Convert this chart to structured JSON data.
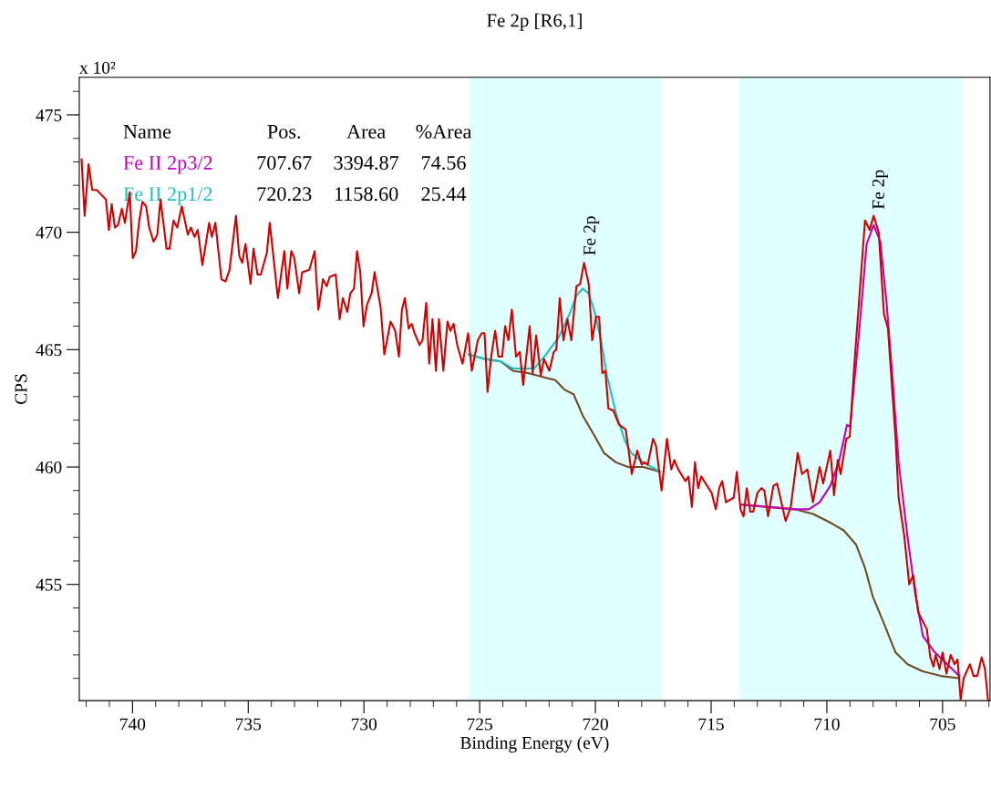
{
  "chart_data": {
    "type": "line",
    "title": "Fe 2p [R6,1]",
    "xlabel": "Binding Energy (eV)",
    "ylabel": "CPS",
    "xlim": [
      742.3,
      702.95
    ],
    "ylim": [
      450.05,
      476.6
    ],
    "xticks": [
      {
        "value": 742,
        "label": null
      },
      {
        "value": 741,
        "label": null
      },
      740,
      {
        "value": 739,
        "label": null
      },
      {
        "value": 738,
        "label": null
      },
      {
        "value": 737,
        "label": null
      },
      {
        "value": 736,
        "label": null
      },
      735,
      {
        "value": 734,
        "label": null
      },
      {
        "value": 733,
        "label": null
      },
      {
        "value": 732,
        "label": null
      },
      {
        "value": 731,
        "label": null
      },
      730,
      {
        "value": 729,
        "label": null
      },
      {
        "value": 728,
        "label": null
      },
      {
        "value": 727,
        "label": null
      },
      {
        "value": 726,
        "label": null
      },
      725,
      {
        "value": 724,
        "label": null
      },
      {
        "value": 723,
        "label": null
      },
      {
        "value": 722,
        "label": null
      },
      {
        "value": 721,
        "label": null
      },
      720,
      {
        "value": 719,
        "label": null
      },
      {
        "value": 718,
        "label": null
      },
      {
        "value": 717,
        "label": null
      },
      {
        "value": 716,
        "label": null
      },
      715,
      {
        "value": 714,
        "label": null
      },
      {
        "value": 713,
        "label": null
      },
      {
        "value": 712,
        "label": null
      },
      {
        "value": 711,
        "label": null
      },
      710,
      {
        "value": 709,
        "label": null
      },
      {
        "value": 708,
        "label": null
      },
      {
        "value": 707,
        "label": null
      },
      {
        "value": 706,
        "label": null
      },
      705,
      {
        "value": 704,
        "label": null
      },
      {
        "value": 703,
        "label": null
      }
    ],
    "yticks": [
      {
        "value": 451,
        "label": null
      },
      {
        "value": 452,
        "label": null
      },
      {
        "value": 453,
        "label": null
      },
      {
        "value": 454,
        "label": null
      },
      455,
      {
        "value": 456,
        "label": null
      },
      {
        "value": 457,
        "label": null
      },
      {
        "value": 458,
        "label": null
      },
      {
        "value": 459,
        "label": null
      },
      460,
      {
        "value": 461,
        "label": null
      },
      {
        "value": 462,
        "label": null
      },
      {
        "value": 463,
        "label": null
      },
      {
        "value": 464,
        "label": null
      },
      465,
      {
        "value": 466,
        "label": null
      },
      {
        "value": 467,
        "label": null
      },
      {
        "value": 468,
        "label": null
      },
      {
        "value": 469,
        "label": null
      },
      470,
      {
        "value": 471,
        "label": null
      },
      {
        "value": 472,
        "label": null
      },
      {
        "value": 473,
        "label": null
      },
      {
        "value": 474,
        "label": null
      },
      475,
      {
        "value": 476,
        "label": null
      }
    ],
    "bands": [
      {
        "axis": "x",
        "from": 725.47,
        "to": 717.13,
        "color": "#e0ffff"
      },
      {
        "axis": "x",
        "from": 713.74,
        "to": 704.17,
        "color": "#e0ffff"
      }
    ],
    "legend": false,
    "grid": false,
    "annotations": [
      "x 10²",
      "Name",
      "Pos.",
      "Area",
      "%Area",
      "707.67",
      "3394.87",
      "74.56",
      "720.23",
      "1158.60",
      "25.44",
      "Fe 2p",
      "Fe 2p"
    ],
    "series": [
      {
        "color": "#d00000",
        "x": [
          742.2,
          742.07,
          741.9,
          741.74,
          741.55,
          741.15,
          741.02,
          740.9,
          740.76,
          740.63,
          740.46,
          740.33,
          740.12,
          739.99,
          739.85,
          739.71,
          739.57,
          739.41,
          739.28,
          739.09,
          738.93,
          738.79,
          738.53,
          738.4,
          738.23,
          738.07,
          737.87,
          737.61,
          737.48,
          737.32,
          737.18,
          736.98,
          736.69,
          736.57,
          736.42,
          736.16,
          735.98,
          735.81,
          735.53,
          735.39,
          735.26,
          735.12,
          734.9,
          734.77,
          734.6,
          734.46,
          734.2,
          734.07,
          733.72,
          733.44,
          733.31,
          733.14,
          733.01,
          732.8,
          732.67,
          732.36,
          732.13,
          731.97,
          731.77,
          731.61,
          731.48,
          731.22,
          731.05,
          730.91,
          730.72,
          730.59,
          730.43,
          730.3,
          730.16,
          730.02,
          729.87,
          729.67,
          729.54,
          729.28,
          729.12,
          728.85,
          728.65,
          728.49,
          728.36,
          728.23,
          728.07,
          727.94,
          727.81,
          727.6,
          727.47,
          727.31,
          727.18,
          727.04,
          726.89,
          726.76,
          726.57,
          726.39,
          726.26,
          726.13,
          725.97,
          725.74,
          725.5,
          725.34,
          725.08,
          724.91,
          724.79,
          724.66,
          724.49,
          724.33,
          724.19,
          724.03,
          723.9,
          723.76,
          723.61,
          723.43,
          723.27,
          723.12,
          722.84,
          722.71,
          722.56,
          722.36,
          722.22,
          721.99,
          721.8,
          721.69,
          721.54,
          721.38,
          721.21,
          721.04,
          720.82,
          720.66,
          720.49,
          720.29,
          720.14,
          719.97,
          719.84,
          719.7,
          719.57,
          719.44,
          719.22,
          718.98,
          718.69,
          718.43,
          718.19,
          718.0,
          717.87,
          717.74,
          717.51,
          717.38,
          717.14,
          716.91,
          716.72,
          716.59,
          716.42,
          716.11,
          715.98,
          715.83,
          715.7,
          715.56,
          715.43,
          714.98,
          714.8,
          714.65,
          714.52,
          714.36,
          714.02,
          713.89,
          713.73,
          713.6,
          713.46,
          713.31,
          713.18,
          713.0,
          712.83,
          712.7,
          712.54,
          712.31,
          712.15,
          711.78,
          711.56,
          711.26,
          711.07,
          710.84,
          710.6,
          710.31,
          710.16,
          709.85,
          709.69,
          709.53,
          709.4,
          709.16,
          709.01,
          708.81,
          708.35,
          708.15,
          707.98,
          707.76,
          707.53,
          707.36,
          707.03,
          706.9,
          706.66,
          706.44,
          706.27,
          706.05,
          705.68,
          705.53,
          705.39,
          705.3,
          705.13,
          705.0,
          704.83,
          704.65,
          704.48,
          704.35,
          704.22,
          704.09,
          703.82,
          703.66,
          703.5,
          703.31,
          703.17,
          703.04
        ],
        "values": [
          473.1,
          470.7,
          472.9,
          471.8,
          471.8,
          471.4,
          470.1,
          471.2,
          470.2,
          470.3,
          471.0,
          470.4,
          471.7,
          468.9,
          469.2,
          470.5,
          471.3,
          471.1,
          470.2,
          469.6,
          469.9,
          471.4,
          469.3,
          469.3,
          470.5,
          470.2,
          471.1,
          469.9,
          470.2,
          469.8,
          470.1,
          468.6,
          470.4,
          469.8,
          470.4,
          468.0,
          467.9,
          468.4,
          470.7,
          469.0,
          468.7,
          469.5,
          467.8,
          469.3,
          468.2,
          468.2,
          469.1,
          470.4,
          467.2,
          469.2,
          467.6,
          469.2,
          468.9,
          467.4,
          468.3,
          468.4,
          469.2,
          466.7,
          468.0,
          467.7,
          468.1,
          468.2,
          466.3,
          467.2,
          466.6,
          467.4,
          467.6,
          469.2,
          468.3,
          466.0,
          466.9,
          467.4,
          468.3,
          466.8,
          464.8,
          466.2,
          465.8,
          464.7,
          466.7,
          467.2,
          465.9,
          466.1,
          465.7,
          465.2,
          465.4,
          467.0,
          464.4,
          466.3,
          464.1,
          466.3,
          464.1,
          466.2,
          465.8,
          466.1,
          465.2,
          464.4,
          465.7,
          464.1,
          465.4,
          465.7,
          465.7,
          463.2,
          464.8,
          465.8,
          464.7,
          464.7,
          466.0,
          465.4,
          466.7,
          464.7,
          464.9,
          463.5,
          466.0,
          464.0,
          465.6,
          463.9,
          464.6,
          464.1,
          464.9,
          465.0,
          467.2,
          465.4,
          466.3,
          465.4,
          467.7,
          467.8,
          468.7,
          467.8,
          465.4,
          466.4,
          466.4,
          464.0,
          464.1,
          462.5,
          462.4,
          461.8,
          461.6,
          459.7,
          460.7,
          460.1,
          460.2,
          460.1,
          461.2,
          460.9,
          459.0,
          461.2,
          459.9,
          460.3,
          459.9,
          459.4,
          459.6,
          458.3,
          460.2,
          459.1,
          459.6,
          458.9,
          458.2,
          459.1,
          459.4,
          458.5,
          458.7,
          459.8,
          458.2,
          457.9,
          459.1,
          458.1,
          458.1,
          458.9,
          459.1,
          459.0,
          457.9,
          459.2,
          459.3,
          457.7,
          458.3,
          460.6,
          459.7,
          459.9,
          458.5,
          460.0,
          459.3,
          460.7,
          458.8,
          460.3,
          459.7,
          461.2,
          461.3,
          464.4,
          470.5,
          470.1,
          470.7,
          470.0,
          466.5,
          465.9,
          461.2,
          458.7,
          457.1,
          455.0,
          455.4,
          453.8,
          453.1,
          451.9,
          451.5,
          452.0,
          451.4,
          452.1,
          451.2,
          452.0,
          451.6,
          451.8,
          450.1,
          451.0,
          451.6,
          451.1,
          451.1,
          451.9,
          451.4,
          450.1
        ]
      },
      {
        "color": "#704a20",
        "x": [
          725.47,
          724.76,
          724.09,
          723.57,
          722.91,
          722.13,
          721.73,
          721.34,
          720.94,
          720.55,
          720.02,
          719.63,
          719.11,
          718.58,
          717.93,
          717.2,
          717.0,
          713.67,
          711.38,
          710.59,
          709.79,
          709.27,
          708.74,
          708.35,
          708.02,
          707.56,
          707.03,
          706.51,
          705.86,
          705.07,
          704.28
        ],
        "values": [
          464.8,
          464.6,
          464.5,
          464.1,
          464.0,
          463.8,
          463.7,
          463.3,
          463.1,
          462.2,
          461.3,
          460.6,
          460.2,
          460.0,
          460.0,
          459.8,
          null,
          458.4,
          458.2,
          458.0,
          457.6,
          457.3,
          456.7,
          455.7,
          454.5,
          453.4,
          452.1,
          451.6,
          451.3,
          451.1,
          451.0
        ]
      },
      {
        "name": "Fe II 2p3/2",
        "color": "#c000c0",
        "x": [
          713.67,
          711.38,
          710.78,
          710.31,
          709.85,
          709.46,
          709.13,
          709.0,
          708.61,
          708.28,
          707.98,
          707.69,
          707.43,
          707.17,
          706.9,
          706.51,
          706.18,
          705.85,
          705.33,
          704.8,
          704.28
        ],
        "values": [
          458.4,
          458.2,
          458.2,
          458.5,
          459.2,
          460.3,
          461.8,
          461.7,
          465.7,
          469.5,
          470.3,
          469.6,
          467.1,
          463.9,
          460.2,
          457.0,
          454.6,
          452.8,
          452.1,
          451.6,
          451.1
        ]
      },
      {
        "name": "Fe II 2p1/2",
        "color": "#20c0c0",
        "x": [
          725.47,
          724.76,
          724.09,
          723.57,
          723.17,
          722.64,
          722.13,
          721.6,
          721.08,
          720.82,
          720.55,
          720.29,
          720.03,
          719.76,
          719.5,
          719.11,
          718.72,
          718.45,
          717.93,
          717.2
        ],
        "values": [
          464.8,
          464.6,
          464.5,
          464.2,
          464.2,
          464.2,
          464.8,
          465.5,
          466.6,
          467.3,
          467.6,
          467.4,
          466.6,
          465.4,
          463.9,
          462.3,
          461.1,
          460.6,
          460.2,
          459.8
        ]
      }
    ]
  }
}
